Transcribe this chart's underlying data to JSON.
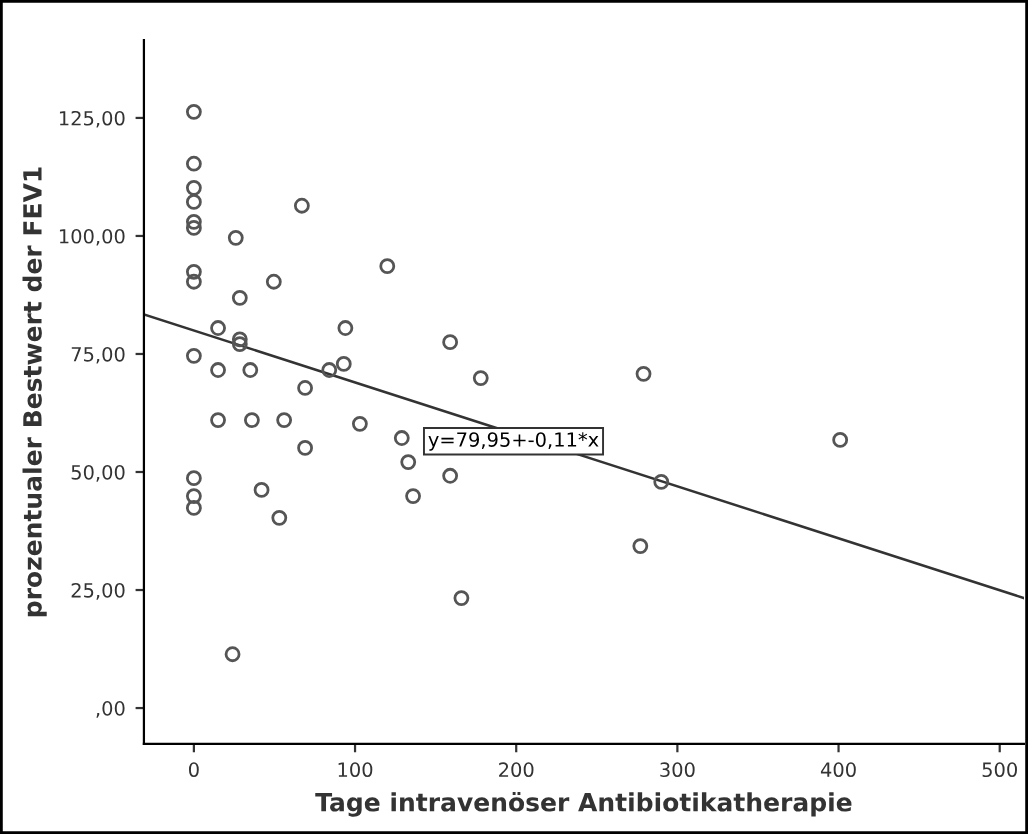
{
  "chart_data": {
    "type": "scatter",
    "xlabel": "Tage intravenöser Antibiotikatherapie",
    "ylabel": "prozentualer Bestwert der FEV1",
    "xlim": [
      -31,
      515
    ],
    "ylim": [
      -7.6,
      141.5
    ],
    "xticks": [
      0,
      100,
      200,
      300,
      400,
      500
    ],
    "yticks": [
      {
        "value": 0,
        "label": ",00"
      },
      {
        "value": 25,
        "label": "25,00"
      },
      {
        "value": 50,
        "label": "50,00"
      },
      {
        "value": 75,
        "label": "75,00"
      },
      {
        "value": 100,
        "label": "100,00"
      },
      {
        "value": 125,
        "label": "125,00"
      }
    ],
    "grid": false,
    "series": [
      {
        "marker": "circle",
        "color": "#555555",
        "x": [
          0,
          0,
          0,
          0,
          0,
          0,
          0,
          0,
          0,
          0,
          0,
          0,
          26,
          67,
          28.5,
          49.6,
          120,
          15,
          28.5,
          28.5,
          94,
          15,
          35,
          93,
          84,
          69,
          15,
          36,
          56,
          103,
          69,
          129,
          133,
          136,
          42,
          53,
          24,
          159,
          178,
          279,
          401,
          159,
          290,
          277,
          166
        ],
        "values": [
          126.3,
          115.3,
          110.2,
          107.2,
          103.0,
          101.7,
          92.4,
          90.3,
          74.6,
          48.7,
          44.9,
          42.4,
          99.6,
          106.4,
          86.9,
          90.3,
          93.6,
          80.5,
          78.1,
          77.1,
          80.5,
          71.6,
          71.6,
          72.9,
          71.6,
          67.8,
          61,
          61,
          61,
          60.2,
          55.1,
          57.2,
          52.1,
          44.9,
          46.2,
          40.3,
          11.4,
          77.5,
          69.9,
          70.8,
          56.8,
          49.2,
          47.9,
          34.3,
          23.3
        ]
      },
      {
        "type": "line",
        "color": "#333333",
        "x": [
          -31,
          515
        ],
        "values": [
          83.4,
          23.3
        ]
      }
    ],
    "annotations": [
      "y=79,95+-0,11*x"
    ]
  }
}
